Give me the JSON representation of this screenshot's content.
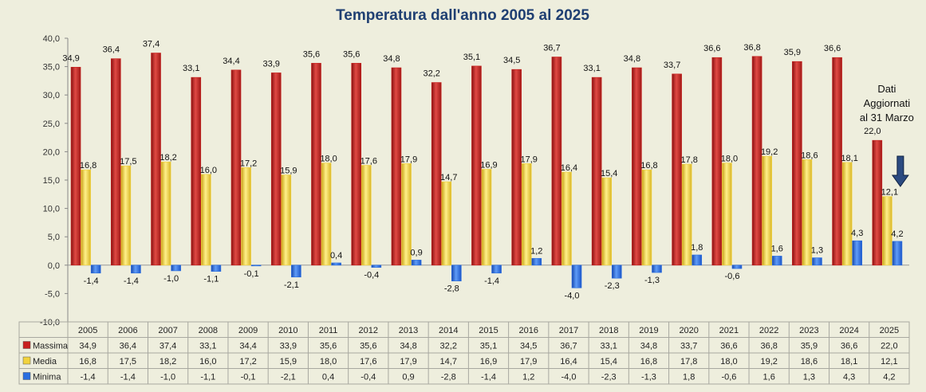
{
  "chart_data": {
    "type": "bar",
    "title": "Temperatura dall'anno 2005 al 2025",
    "categories": [
      "2005",
      "2006",
      "2007",
      "2008",
      "2009",
      "2010",
      "2011",
      "2012",
      "2013",
      "2014",
      "2015",
      "2016",
      "2017",
      "2018",
      "2019",
      "2020",
      "2021",
      "2022",
      "2023",
      "2024",
      "2025"
    ],
    "series": [
      {
        "name": "Massima",
        "color": "#c8201e",
        "values": [
          34.9,
          36.4,
          37.4,
          33.1,
          34.4,
          33.9,
          35.6,
          35.6,
          34.8,
          32.2,
          35.1,
          34.5,
          36.7,
          33.1,
          34.8,
          33.7,
          36.6,
          36.8,
          35.9,
          36.6,
          22.0
        ],
        "labels": [
          "34,9",
          "36,4",
          "37,4",
          "33,1",
          "34,4",
          "33,9",
          "35,6",
          "35,6",
          "34,8",
          "32,2",
          "35,1",
          "34,5",
          "36,7",
          "33,1",
          "34,8",
          "33,7",
          "36,6",
          "36,8",
          "35,9",
          "36,6",
          "22,0"
        ]
      },
      {
        "name": "Media",
        "color": "#f2d33c",
        "values": [
          16.8,
          17.5,
          18.2,
          16.0,
          17.2,
          15.9,
          18.0,
          17.6,
          17.9,
          14.7,
          16.9,
          17.9,
          16.4,
          15.4,
          16.8,
          17.8,
          18.0,
          19.2,
          18.6,
          18.1,
          12.1
        ],
        "labels": [
          "16,8",
          "17,5",
          "18,2",
          "16,0",
          "17,2",
          "15,9",
          "18,0",
          "17,6",
          "17,9",
          "14,7",
          "16,9",
          "17,9",
          "16,4",
          "15,4",
          "16,8",
          "17,8",
          "18,0",
          "19,2",
          "18,6",
          "18,1",
          "12,1"
        ]
      },
      {
        "name": "Minima",
        "color": "#2a6fe0",
        "values": [
          -1.4,
          -1.4,
          -1.0,
          -1.1,
          -0.1,
          -2.1,
          0.4,
          -0.4,
          0.9,
          -2.8,
          -1.4,
          1.2,
          -4.0,
          -2.3,
          -1.3,
          1.8,
          -0.6,
          1.6,
          1.3,
          4.3,
          4.2
        ],
        "labels": [
          "-1,4",
          "-1,4",
          "-1,0",
          "-1,1",
          "-0,1",
          "-2,1",
          "0,4",
          "-0,4",
          "0,9",
          "-2,8",
          "-1,4",
          "1,2",
          "-4,0",
          "-2,3",
          "-1,3",
          "1,8",
          "-0,6",
          "1,6",
          "1,3",
          "4,3",
          "4,2"
        ]
      }
    ],
    "y_ticks": [
      "-10,0",
      "-5,0",
      "0,0",
      "5,0",
      "10,0",
      "15,0",
      "20,0",
      "25,0",
      "30,0",
      "35,0",
      "40,0"
    ],
    "ylim": [
      -10,
      40
    ],
    "grid": false,
    "legend": "data-table-below",
    "annotation": {
      "lines": [
        "Dati",
        "Aggiornati",
        "al 31 Marzo"
      ],
      "category": "2025"
    }
  }
}
